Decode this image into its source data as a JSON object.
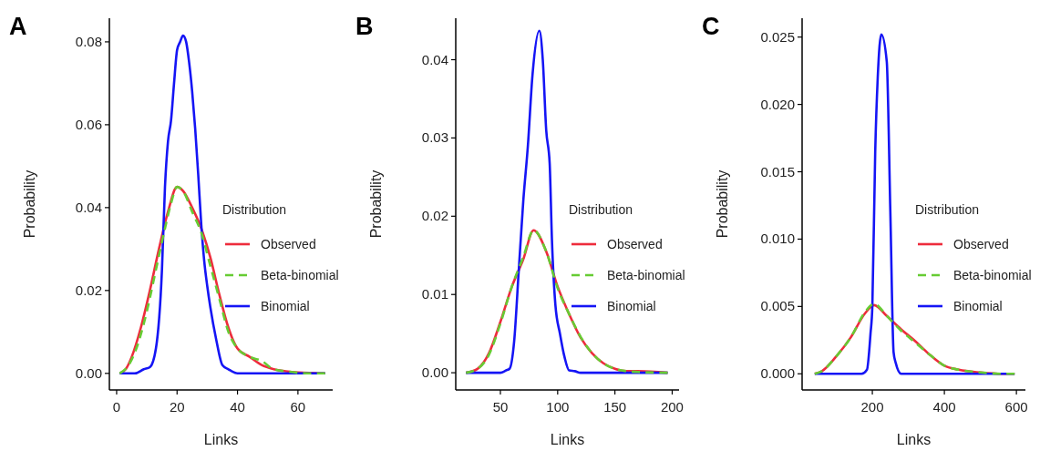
{
  "chart_data": [
    {
      "type": "line",
      "title": "A",
      "xlabel": "Links",
      "ylabel": "Probability",
      "legend_title": "Distribution",
      "legend": "right",
      "xlim": [
        -2.4,
        71.5
      ],
      "ylim": [
        -0.004,
        0.0857
      ],
      "xticks": [
        0,
        20,
        40,
        60
      ],
      "yticks": [
        {
          "value": 0,
          "label": "0.00"
        },
        0.02,
        0.04,
        0.06,
        0.08
      ],
      "series": [
        {
          "name": "Observed",
          "color": "#ee2c3c",
          "line_style": "solid",
          "x": [
            1,
            3,
            5,
            8,
            11,
            14,
            17,
            20,
            22,
            25,
            28,
            31,
            34,
            37,
            40,
            44,
            48,
            52,
            56,
            60,
            69
          ],
          "values": [
            0,
            0.001,
            0.004,
            0.011,
            0.02,
            0.03,
            0.039,
            0.045,
            0.044,
            0.04,
            0.035,
            0.028,
            0.019,
            0.011,
            0.006,
            0.004,
            0.002,
            0.001,
            0.0005,
            0.0002,
            0
          ]
        },
        {
          "name": "Beta-binomial",
          "color": "#66cc33",
          "line_style": "dashed",
          "x": [
            1,
            4,
            7,
            10,
            13,
            16,
            18,
            20,
            22,
            25,
            28,
            31,
            34,
            37,
            40,
            44,
            48,
            52,
            56,
            64,
            69
          ],
          "values": [
            0,
            0.002,
            0.007,
            0.015,
            0.025,
            0.035,
            0.041,
            0.045,
            0.044,
            0.039,
            0.034,
            0.026,
            0.018,
            0.01,
            0.006,
            0.004,
            0.003,
            0.001,
            0.0005,
            0,
            0
          ]
        },
        {
          "name": "Binomial",
          "color": "#1515f5",
          "line_style": "solid",
          "x": [
            1,
            6,
            9,
            11,
            13,
            15,
            16,
            17,
            18,
            19,
            20,
            21,
            22,
            23,
            24,
            25,
            26,
            27,
            28,
            29,
            30,
            31,
            33,
            35,
            37,
            40,
            69
          ],
          "values": [
            0,
            0,
            0.001,
            0.0015,
            0.006,
            0.025,
            0.045,
            0.056,
            0.061,
            0.07,
            0.078,
            0.08,
            0.0815,
            0.08,
            0.075,
            0.068,
            0.059,
            0.048,
            0.036,
            0.027,
            0.021,
            0.016,
            0.008,
            0.002,
            0.001,
            0,
            0
          ]
        }
      ]
    },
    {
      "type": "line",
      "title": "B",
      "xlabel": "Links",
      "ylabel": "Probability",
      "legend_title": "Distribution",
      "legend": "right",
      "xlim": [
        11,
        206
      ],
      "ylim": [
        -0.0022,
        0.0453
      ],
      "xticks": [
        50,
        100,
        150,
        200
      ],
      "yticks": [
        {
          "value": 0,
          "label": "0.00"
        },
        0.01,
        0.02,
        0.03,
        0.04
      ],
      "series": [
        {
          "name": "Observed",
          "color": "#ee2c3c",
          "line_style": "solid",
          "x": [
            20,
            30,
            40,
            50,
            60,
            70,
            79,
            90,
            100,
            110,
            120,
            130,
            140,
            150,
            160,
            170,
            196
          ],
          "values": [
            0,
            0.0005,
            0.0025,
            0.0065,
            0.011,
            0.0145,
            0.0182,
            0.0155,
            0.011,
            0.0075,
            0.0045,
            0.0025,
            0.0012,
            0.0005,
            0.0002,
            0.0002,
            0
          ]
        },
        {
          "name": "Beta-binomial",
          "color": "#66cc33",
          "line_style": "dashed",
          "x": [
            20,
            30,
            40,
            50,
            60,
            70,
            79,
            90,
            100,
            110,
            120,
            130,
            140,
            150,
            160,
            170,
            196
          ],
          "values": [
            0,
            0.0005,
            0.0023,
            0.0063,
            0.011,
            0.0148,
            0.0182,
            0.0155,
            0.0108,
            0.0075,
            0.0046,
            0.0025,
            0.0012,
            0.0005,
            0.0002,
            0.0001,
            0
          ]
        },
        {
          "name": "Binomial",
          "color": "#1515f5",
          "line_style": "solid",
          "x": [
            20,
            50,
            55,
            58,
            62,
            66,
            70,
            74,
            78,
            84,
            87,
            90,
            93,
            95,
            98,
            102,
            106,
            110,
            115,
            120,
            196
          ],
          "values": [
            0,
            0,
            0.0003,
            0.0005,
            0.004,
            0.013,
            0.022,
            0.029,
            0.038,
            0.0437,
            0.04,
            0.031,
            0.0268,
            0.017,
            0.0087,
            0.005,
            0.002,
            0.0003,
            0.0002,
            0,
            0
          ]
        }
      ]
    },
    {
      "type": "line",
      "title": "C",
      "xlabel": "Links",
      "ylabel": "Probability",
      "legend_title": "Distribution",
      "legend": "right",
      "xlim": [
        5,
        625
      ],
      "ylim": [
        -0.0012,
        0.0264
      ],
      "xticks": [
        200,
        400,
        600
      ],
      "yticks": [
        {
          "value": 0,
          "label": "0.000"
        },
        0.005,
        {
          "value": 0.01,
          "label": "0.010"
        },
        0.015,
        {
          "value": 0.02,
          "label": "0.020"
        },
        0.025
      ],
      "series": [
        {
          "name": "Observed",
          "color": "#ee2c3c",
          "line_style": "solid",
          "x": [
            40,
            60,
            100,
            140,
            180,
            205,
            240,
            280,
            320,
            360,
            400,
            440,
            500,
            560,
            595
          ],
          "values": [
            0,
            0.0002,
            0.0013,
            0.0027,
            0.0045,
            0.0051,
            0.0043,
            0.0033,
            0.0024,
            0.0014,
            0.0006,
            0.0003,
            0.0001,
            0,
            0
          ]
        },
        {
          "name": "Beta-binomial",
          "color": "#66cc33",
          "line_style": "dashed",
          "x": [
            40,
            60,
            100,
            140,
            180,
            205,
            240,
            280,
            320,
            360,
            400,
            440,
            500,
            560,
            595
          ],
          "values": [
            0,
            0.0002,
            0.0013,
            0.0027,
            0.0046,
            0.0052,
            0.0043,
            0.0032,
            0.0023,
            0.0014,
            0.0006,
            0.0003,
            0.0001,
            0,
            0
          ]
        },
        {
          "name": "Binomial",
          "color": "#1515f5",
          "line_style": "solid",
          "x": [
            40,
            170,
            185,
            195,
            200,
            208,
            215,
            225,
            240,
            250,
            259,
            265,
            280,
            595
          ],
          "values": [
            0,
            0,
            0.0003,
            0.003,
            0.005,
            0.0165,
            0.022,
            0.0252,
            0.0232,
            0.012,
            0.0016,
            0.0008,
            0,
            0
          ]
        }
      ]
    }
  ]
}
